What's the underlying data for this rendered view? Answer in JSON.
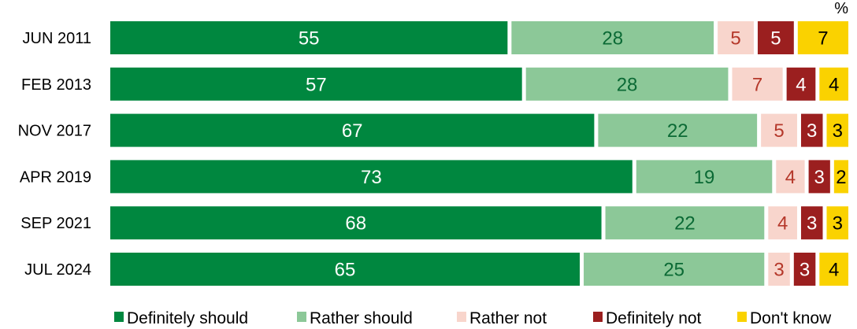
{
  "chart_data": {
    "type": "bar",
    "orientation": "horizontal",
    "stacked": true,
    "unit": "%",
    "categories": [
      "JUN 2011",
      "FEB 2013",
      "NOV 2017",
      "APR 2019",
      "SEP 2021",
      "JUL 2024"
    ],
    "series": [
      {
        "name": "Definitely should",
        "color": "#00873F",
        "label_color": "#FFFFFF",
        "values": [
          55,
          57,
          67,
          73,
          68,
          65
        ]
      },
      {
        "name": "Rather should",
        "color": "#8CC898",
        "label_color": "#0B6A35",
        "values": [
          28,
          28,
          22,
          19,
          22,
          25
        ]
      },
      {
        "name": "Rather not",
        "color": "#F8D5CC",
        "label_color": "#B5382A",
        "values": [
          5,
          7,
          5,
          4,
          4,
          3
        ]
      },
      {
        "name": "Definitely not",
        "color": "#9B1F1F",
        "label_color": "#FFFFFF",
        "values": [
          5,
          4,
          3,
          3,
          3,
          3
        ]
      },
      {
        "name": "Don't know",
        "color": "#FAD200",
        "label_color": "#000000",
        "values": [
          7,
          4,
          3,
          2,
          3,
          4
        ]
      }
    ],
    "legend_position": "bottom",
    "grid": false
  }
}
